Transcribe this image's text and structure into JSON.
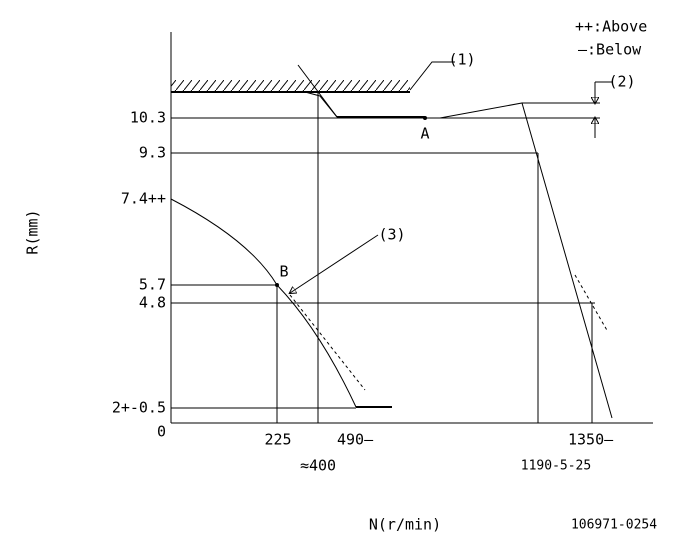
{
  "legend": {
    "above": "++:Above",
    "below": "—:Below"
  },
  "callouts": {
    "c1": "(1)",
    "c2": "(2)",
    "c3": "(3)"
  },
  "points": {
    "a": "A",
    "b": "B"
  },
  "y_labels": [
    "10.3",
    "9.3",
    "7.4++",
    "5.7",
    "4.8",
    "2+-0.5",
    "0"
  ],
  "x_labels": [
    "225",
    "490—",
    "≈400",
    "1350—",
    "1190-5-25"
  ],
  "axis_titles": {
    "y": "R(mm)",
    "x": "N(r/min)"
  },
  "code": "106971-0254"
}
